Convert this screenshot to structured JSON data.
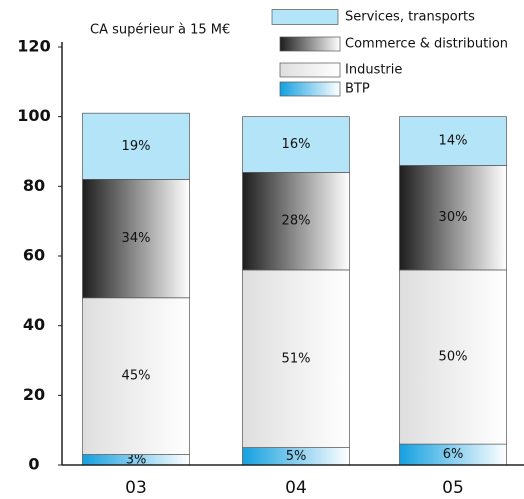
{
  "chart_data": {
    "type": "stacked_bar",
    "title": "CA supérieur à 15 M€",
    "categories": [
      "03",
      "04",
      "05"
    ],
    "series": [
      {
        "name": "BTP",
        "color": "#14a0e0",
        "gradient": true,
        "values": [
          3,
          5,
          6
        ],
        "value_labels": [
          "3%",
          "5%",
          "6%"
        ]
      },
      {
        "name": "Industrie",
        "color": "#dedede",
        "gradient": true,
        "values": [
          45,
          51,
          50
        ],
        "value_labels": [
          "45%",
          "51%",
          "50%"
        ]
      },
      {
        "name": "Commerce & distribution",
        "color": "#1e1e1e",
        "gradient": true,
        "values": [
          34,
          28,
          30
        ],
        "value_labels": [
          "34%",
          "28%",
          "30%"
        ]
      },
      {
        "name": "Services, transports",
        "color": "#b4e4f8",
        "gradient": false,
        "values": [
          19,
          16,
          14
        ],
        "value_labels": [
          "19%",
          "16%",
          "14%"
        ]
      }
    ],
    "ylim": [
      0,
      120
    ],
    "yticks": [
      0,
      20,
      40,
      60,
      80,
      100,
      120
    ],
    "legend": "top-right"
  }
}
